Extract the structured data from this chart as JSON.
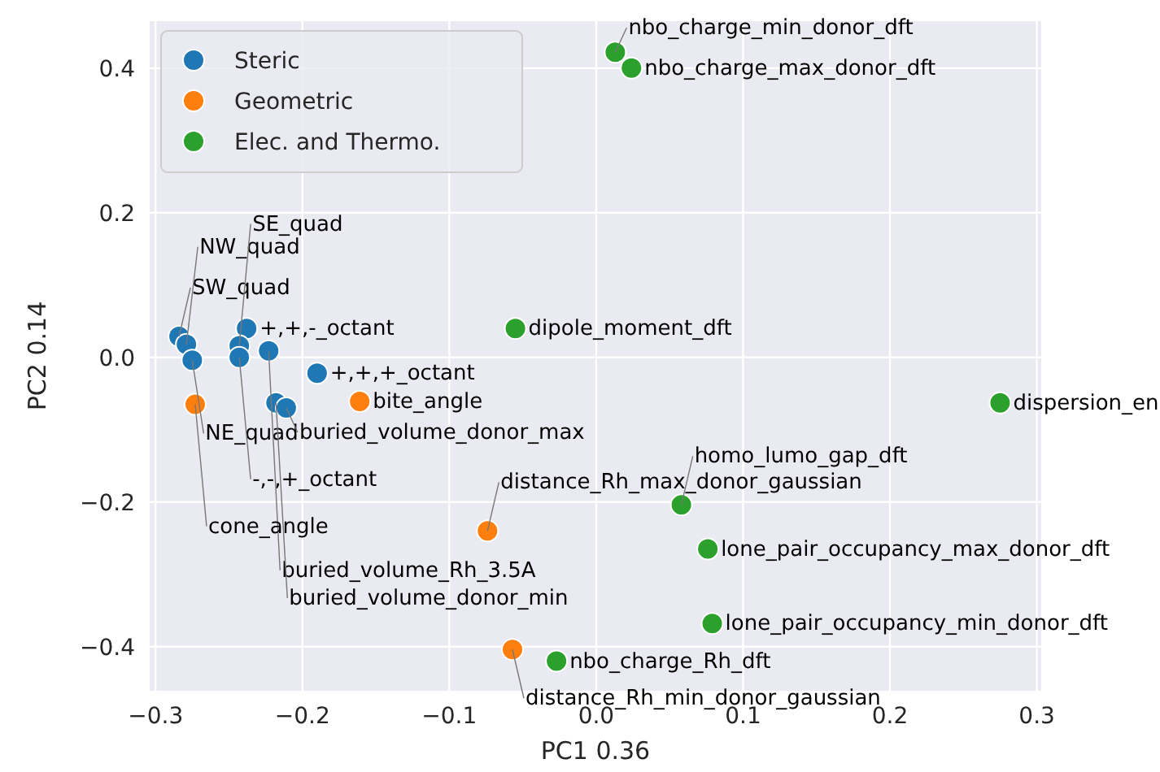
{
  "chart_data": {
    "type": "scatter",
    "xlabel": "PC1 0.36",
    "ylabel": "PC2 0.14",
    "xlim": [
      -0.304,
      0.303
    ],
    "ylim": [
      -0.461,
      0.465
    ],
    "xticks": [
      {
        "value": -0.3,
        "label": "−0.3"
      },
      {
        "value": -0.2,
        "label": "−0.2"
      },
      {
        "value": -0.1,
        "label": "−0.1"
      },
      {
        "value": 0,
        "label": "0.0"
      },
      {
        "value": 0.1,
        "label": "0.1"
      },
      {
        "value": 0.2,
        "label": "0.2"
      },
      {
        "value": 0.3,
        "label": "0.3"
      }
    ],
    "yticks": [
      {
        "value": -0.4,
        "label": "−0.4"
      },
      {
        "value": -0.2,
        "label": "−0.2"
      },
      {
        "value": 0,
        "label": "0.0"
      },
      {
        "value": 0.2,
        "label": "0.2"
      },
      {
        "value": 0.4,
        "label": "0.4"
      }
    ],
    "grid": true,
    "legend": "top left",
    "marker": "circle",
    "series": [
      {
        "name": "Steric",
        "color": "#1f77b4",
        "x": [
          -0.284,
          -0.279,
          -0.275,
          -0.238,
          -0.243,
          -0.243,
          -0.223,
          -0.19,
          -0.218,
          -0.211
        ],
        "values": [
          0.029,
          0.018,
          -0.004,
          0.04,
          0.016,
          0.0,
          0.009,
          -0.022,
          -0.063,
          -0.07
        ]
      },
      {
        "name": "Geometric",
        "color": "#ff7f0e",
        "x": [
          -0.273,
          -0.161,
          -0.074,
          -0.057
        ],
        "values": [
          -0.065,
          -0.061,
          -0.24,
          -0.404
        ]
      },
      {
        "name": "Elec. and Thermo.",
        "color": "#2ca02c",
        "x": [
          0.013,
          0.024,
          -0.055,
          0.275,
          0.058,
          0.076,
          0.079,
          -0.027
        ],
        "values": [
          0.422,
          0.4,
          0.04,
          -0.063,
          -0.204,
          -0.265,
          -0.368,
          -0.42
        ]
      }
    ],
    "annotations": [
      {
        "text": "SW_quad",
        "x": -0.284,
        "y": 0.029
      },
      {
        "text": "NW_quad",
        "x": -0.279,
        "y": 0.018
      },
      {
        "text": "NE_quad",
        "x": -0.275,
        "y": -0.004
      },
      {
        "text": "+,+,-_octant",
        "x": -0.238,
        "y": 0.04
      },
      {
        "text": "SE_quad",
        "x": -0.243,
        "y": 0.016
      },
      {
        "text": "-,-,+_octant",
        "x": -0.243,
        "y": 0.0
      },
      {
        "text": "buried_volume_Rh_3.5A",
        "x": -0.223,
        "y": 0.009
      },
      {
        "text": "+,+,+_octant",
        "x": -0.19,
        "y": -0.022
      },
      {
        "text": "buried_volume_donor_min",
        "x": -0.218,
        "y": -0.063
      },
      {
        "text": "buried_volume_donor_max",
        "x": -0.211,
        "y": -0.07
      },
      {
        "text": "cone_angle",
        "x": -0.273,
        "y": -0.065
      },
      {
        "text": "bite_angle",
        "x": -0.161,
        "y": -0.061
      },
      {
        "text": "distance_Rh_max_donor_gaussian",
        "x": -0.074,
        "y": -0.24
      },
      {
        "text": "distance_Rh_min_donor_gaussian",
        "x": -0.057,
        "y": -0.404
      },
      {
        "text": "nbo_charge_min_donor_dft",
        "x": 0.013,
        "y": 0.422
      },
      {
        "text": "nbo_charge_max_donor_dft",
        "x": 0.024,
        "y": 0.4
      },
      {
        "text": "dipole_moment_dft",
        "x": -0.055,
        "y": 0.04
      },
      {
        "text": "dispersion_en",
        "x": 0.275,
        "y": -0.063
      },
      {
        "text": "homo_lumo_gap_dft",
        "x": 0.058,
        "y": -0.204
      },
      {
        "text": "lone_pair_occupancy_max_donor_dft",
        "x": 0.076,
        "y": -0.265
      },
      {
        "text": "lone_pair_occupancy_min_donor_dft",
        "x": 0.079,
        "y": -0.368
      },
      {
        "text": "nbo_charge_Rh_dft",
        "x": -0.027,
        "y": -0.42
      }
    ]
  }
}
